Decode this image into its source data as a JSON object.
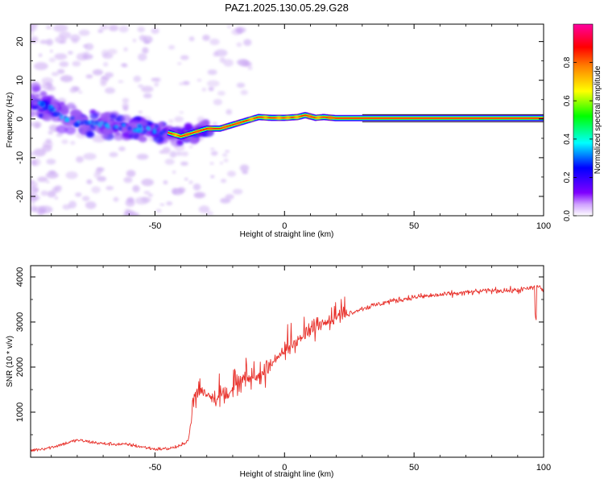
{
  "figure": {
    "title": "PAZ1.2025.130.05.29.G28"
  },
  "colors": {
    "snr_line": "#e8302a",
    "axis": "#000000",
    "background": "#ffffff"
  },
  "chart_data": [
    {
      "type": "heatmap",
      "xlabel": "Height of straight line (km)",
      "ylabel": "Frequency (Hz)",
      "xlim": [
        -98,
        100
      ],
      "ylim": [
        -25,
        24.5
      ],
      "xticks": [
        -50,
        0,
        50,
        100
      ],
      "yticks": [
        -20,
        -10,
        0,
        10,
        20
      ],
      "colorbar": {
        "label": "Normalized spectral amplitude",
        "range": [
          0,
          1
        ],
        "ticks": [
          "0.0",
          "0.2",
          "0.4",
          "0.6",
          "0.8"
        ],
        "colormap": [
          "#ffffff",
          "#7f00ff",
          "#0000ff",
          "#00ffff",
          "#00ff00",
          "#ffff00",
          "#ff8000",
          "#ff0000",
          "#ff00ff"
        ]
      },
      "ridge": {
        "description_points_x": [
          -98,
          -90,
          -80,
          -70,
          -60,
          -50,
          -45,
          -40,
          -35,
          -30,
          -25,
          -20,
          -15,
          -10,
          -5,
          0,
          5,
          8,
          12,
          15,
          20,
          30,
          50,
          100
        ],
        "frequency_y": [
          5,
          2.5,
          -1,
          -1.5,
          -2.5,
          -3,
          -3.5,
          -4.5,
          -3.5,
          -2.5,
          -2.5,
          -1.5,
          -0.5,
          0.5,
          0.3,
          0.3,
          0.5,
          1,
          0.3,
          0.5,
          0.2,
          0.2,
          0.2,
          0.2
        ]
      }
    },
    {
      "type": "line",
      "xlabel": "Height of straight line (km)",
      "ylabel": "SNR (10 * v/v)",
      "xlim": [
        -98,
        100
      ],
      "ylim": [
        0,
        4250
      ],
      "xticks": [
        -50,
        0,
        50,
        100
      ],
      "yticks": [
        1000,
        2000,
        3000,
        4000
      ],
      "series": [
        {
          "x": [
            -98,
            -90,
            -80,
            -70,
            -60,
            -50,
            -45,
            -40,
            -37,
            -35,
            -33,
            -30,
            -25,
            -20,
            -15,
            -10,
            -5,
            0,
            5,
            10,
            15,
            20,
            25,
            30,
            40,
            50,
            60,
            70,
            80,
            90,
            95,
            98,
            100
          ],
          "y": [
            150,
            220,
            380,
            300,
            280,
            180,
            190,
            250,
            400,
            1300,
            1500,
            1400,
            1300,
            1500,
            1700,
            1800,
            2100,
            2350,
            2600,
            2800,
            3000,
            3150,
            3200,
            3300,
            3450,
            3550,
            3600,
            3650,
            3700,
            3700,
            3750,
            3800,
            3700
          ]
        }
      ]
    }
  ]
}
